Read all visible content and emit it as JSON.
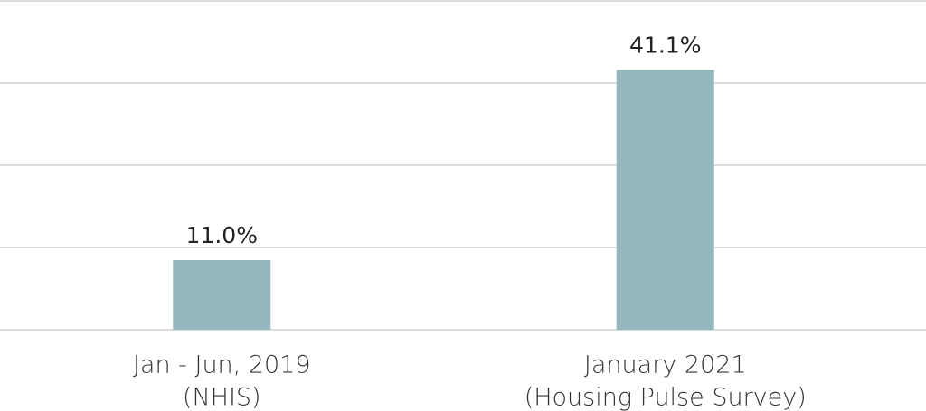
{
  "chart_data": {
    "type": "bar",
    "categories": [
      [
        "Jan - Jun, 2019",
        "(NHIS)"
      ],
      [
        "January 2021",
        "(Housing Pulse Survey)"
      ]
    ],
    "values": [
      11.0,
      41.1
    ],
    "value_labels": [
      "11.0%",
      "41.1%"
    ],
    "color": "#93b7bc",
    "ylim": [
      0,
      52
    ],
    "yticks": [
      0,
      13,
      26,
      39,
      52
    ],
    "grid": true
  }
}
